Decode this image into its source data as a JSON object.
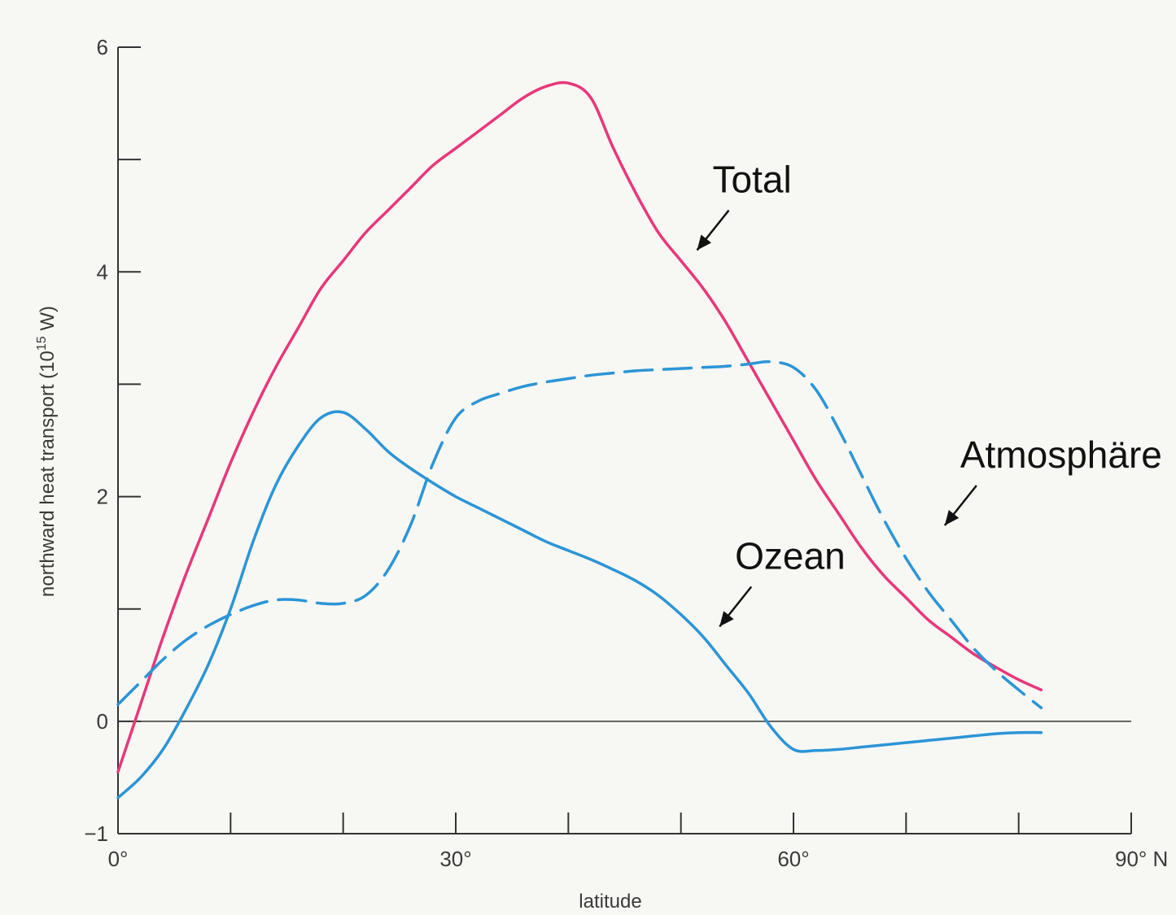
{
  "chart_data": {
    "type": "line",
    "xlabel": "latitude",
    "ylabel_prefix": "northward heat transport (10",
    "ylabel_sup": "15",
    "ylabel_suffix": " W)",
    "xlim": [
      0,
      90
    ],
    "ylim": [
      -1,
      6
    ],
    "x_ticks": [
      0,
      10,
      20,
      30,
      40,
      50,
      60,
      70,
      80,
      90
    ],
    "x_tick_labels": [
      {
        "value": 0,
        "label": "0°"
      },
      {
        "value": 30,
        "label": "30°"
      },
      {
        "value": 60,
        "label": "60°"
      },
      {
        "value": 90,
        "label": "90° N"
      }
    ],
    "y_ticks": [
      -1,
      0,
      1,
      2,
      3,
      4,
      5,
      6
    ],
    "y_tick_labels": [
      {
        "value": 6,
        "label": "6"
      },
      {
        "value": 4,
        "label": "4"
      },
      {
        "value": 2,
        "label": "2"
      },
      {
        "value": 0,
        "label": "0"
      },
      {
        "value": -1,
        "label": "−1"
      }
    ],
    "zero_line": true,
    "series": [
      {
        "name": "Total",
        "color": "#e8377a",
        "dash": false,
        "x": [
          0,
          2,
          4,
          6,
          8,
          10,
          12,
          14,
          16,
          18,
          20,
          22,
          24,
          26,
          28,
          30,
          32,
          34,
          36,
          38,
          40,
          42,
          44,
          46,
          48,
          50,
          52,
          54,
          56,
          58,
          60,
          62,
          64,
          66,
          68,
          70,
          72,
          74,
          76,
          78,
          80,
          82
        ],
        "y": [
          -0.45,
          0.15,
          0.75,
          1.3,
          1.8,
          2.3,
          2.75,
          3.15,
          3.5,
          3.85,
          4.1,
          4.35,
          4.55,
          4.75,
          4.95,
          5.1,
          5.25,
          5.4,
          5.55,
          5.65,
          5.68,
          5.55,
          5.1,
          4.7,
          4.35,
          4.1,
          3.85,
          3.55,
          3.2,
          2.85,
          2.5,
          2.15,
          1.85,
          1.55,
          1.3,
          1.1,
          0.9,
          0.75,
          0.6,
          0.48,
          0.37,
          0.28
        ]
      },
      {
        "name": "Atmosphäre",
        "color": "#2b95d6",
        "dash": true,
        "x": [
          0,
          2,
          4,
          6,
          8,
          10,
          12,
          14,
          16,
          18,
          20,
          22,
          24,
          26,
          28,
          30,
          32,
          34,
          36,
          38,
          40,
          42,
          44,
          46,
          48,
          50,
          52,
          54,
          56,
          58,
          60,
          62,
          64,
          66,
          68,
          70,
          72,
          74,
          76,
          78,
          80,
          82
        ],
        "y": [
          0.15,
          0.35,
          0.55,
          0.72,
          0.85,
          0.95,
          1.03,
          1.08,
          1.08,
          1.05,
          1.05,
          1.12,
          1.35,
          1.75,
          2.3,
          2.7,
          2.85,
          2.92,
          2.98,
          3.02,
          3.05,
          3.08,
          3.1,
          3.12,
          3.13,
          3.14,
          3.15,
          3.16,
          3.18,
          3.2,
          3.15,
          2.95,
          2.6,
          2.2,
          1.8,
          1.45,
          1.15,
          0.9,
          0.65,
          0.45,
          0.28,
          0.12
        ]
      },
      {
        "name": "Ozean",
        "color": "#2b95d6",
        "dash": false,
        "x": [
          0,
          2,
          4,
          6,
          8,
          10,
          12,
          14,
          16,
          18,
          20,
          22,
          24,
          26,
          28,
          30,
          32,
          34,
          36,
          38,
          40,
          42,
          44,
          46,
          48,
          50,
          52,
          54,
          56,
          58,
          60,
          62,
          64,
          66,
          68,
          70,
          72,
          74,
          76,
          78,
          80,
          82
        ],
        "y": [
          -0.68,
          -0.5,
          -0.25,
          0.1,
          0.5,
          1.0,
          1.6,
          2.1,
          2.45,
          2.7,
          2.75,
          2.6,
          2.4,
          2.25,
          2.12,
          2.0,
          1.9,
          1.8,
          1.7,
          1.6,
          1.52,
          1.44,
          1.35,
          1.25,
          1.12,
          0.95,
          0.75,
          0.5,
          0.25,
          -0.05,
          -0.25,
          -0.26,
          -0.25,
          -0.23,
          -0.21,
          -0.19,
          -0.17,
          -0.15,
          -0.13,
          -0.11,
          -0.1,
          -0.1
        ]
      }
    ],
    "annotations": [
      {
        "text": "Total",
        "series": "Total",
        "arrow_x": 51,
        "arrow_y": 4.15
      },
      {
        "text": "Atmosphäre",
        "series": "Atmosphäre",
        "arrow_x": 73,
        "arrow_y": 1.7
      },
      {
        "text": "Ozean",
        "series": "Ozean",
        "arrow_x": 53,
        "arrow_y": 0.8
      }
    ]
  }
}
